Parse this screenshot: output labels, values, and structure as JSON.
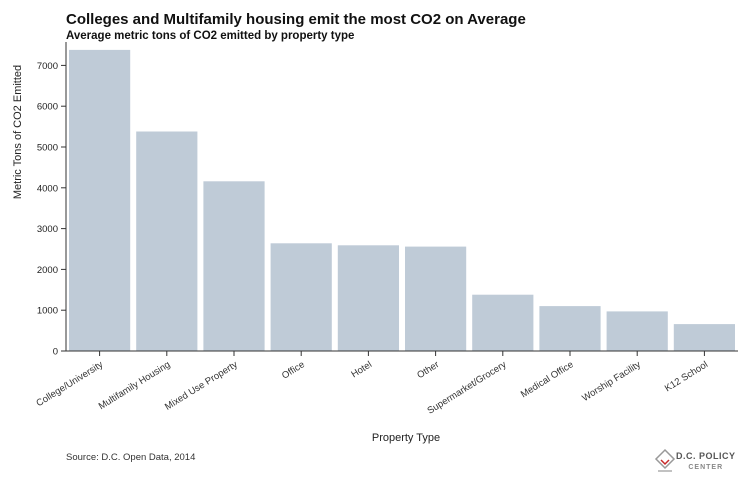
{
  "title": "Colleges and Multifamily housing emit the most CO2 on Average",
  "subtitle": "Average metric tons of CO2 emitted by property type",
  "source": "Source: D.C. Open Data, 2014",
  "logo": {
    "line1": "D.C. POLICY",
    "line2": "CENTER"
  },
  "colors": {
    "bar": "#bfcbd7",
    "axis": "#333333"
  },
  "chart_data": {
    "type": "bar",
    "title": "Colleges and Multifamily housing emit the most CO2 on Average",
    "subtitle": "Average metric tons of CO2 emitted by property type",
    "xlabel": "Property Type",
    "ylabel": "Metric Tons of CO2 Emitted",
    "categories": [
      "College/University",
      "Multifamily Housing",
      "Mixed Use Property",
      "Office",
      "Hotel",
      "Other",
      "Supermarket/Grocery",
      "Medical Office",
      "Worship Facility",
      "K12 School"
    ],
    "values": [
      7380,
      5380,
      4160,
      2640,
      2590,
      2560,
      1380,
      1100,
      970,
      660
    ],
    "yticks": [
      0,
      1000,
      2000,
      3000,
      4000,
      5000,
      6000,
      7000
    ],
    "ylim": [
      0,
      7500
    ],
    "grid": false,
    "legend": "none"
  }
}
